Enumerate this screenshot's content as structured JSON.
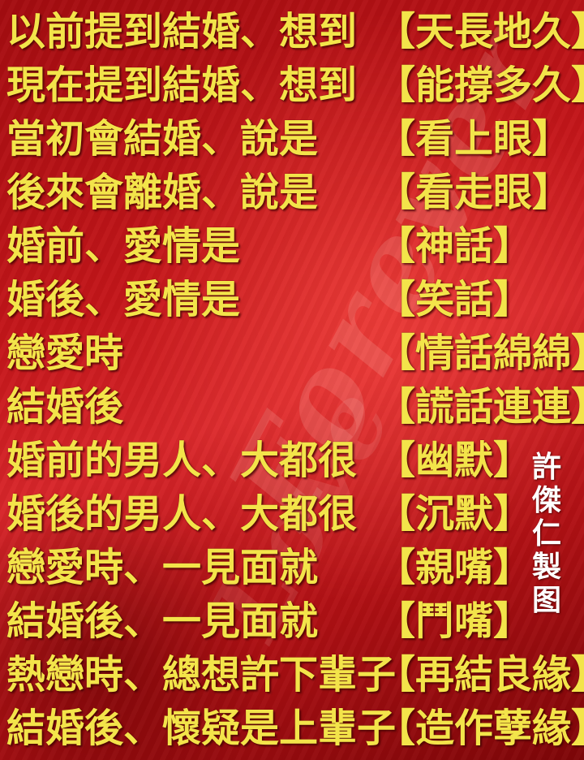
{
  "lines": [
    {
      "left": "以前提到結婚、想到",
      "right": "【天長地久】"
    },
    {
      "left": "現在提到結婚、想到",
      "right": "【能撐多久】"
    },
    {
      "left": "當初會結婚、說是",
      "right": "【看上眼】"
    },
    {
      "left": "後來會離婚、說是",
      "right": "【看走眼】"
    },
    {
      "left": "婚前、愛情是",
      "right": "【神話】"
    },
    {
      "left": "婚後、愛情是",
      "right": "【笑話】"
    },
    {
      "left": "戀愛時",
      "right": "【情話綿綿】"
    },
    {
      "left": "結婚後",
      "right": "【謊話連連】"
    },
    {
      "left": "婚前的男人、大都很",
      "right": "【幽默】"
    },
    {
      "left": "婚後的男人、大都很",
      "right": "【沉默】"
    },
    {
      "left": "戀愛時、一見面就",
      "right": "【親嘴】"
    },
    {
      "left": "結婚後、一見面就",
      "right": "【鬥嘴】"
    },
    {
      "left": "熱戀時、總想許下輩子",
      "right": "【再結良緣】"
    },
    {
      "left": "結婚後、懷疑是上輩子",
      "right": "【造作孽緣】"
    }
  ],
  "signature": [
    "許",
    "傑",
    "仁",
    "製",
    "图"
  ],
  "watermark": "Forever Love",
  "colors": {
    "text": "#f3e44a",
    "signature": "#ffffff",
    "background": "#c4161a"
  }
}
